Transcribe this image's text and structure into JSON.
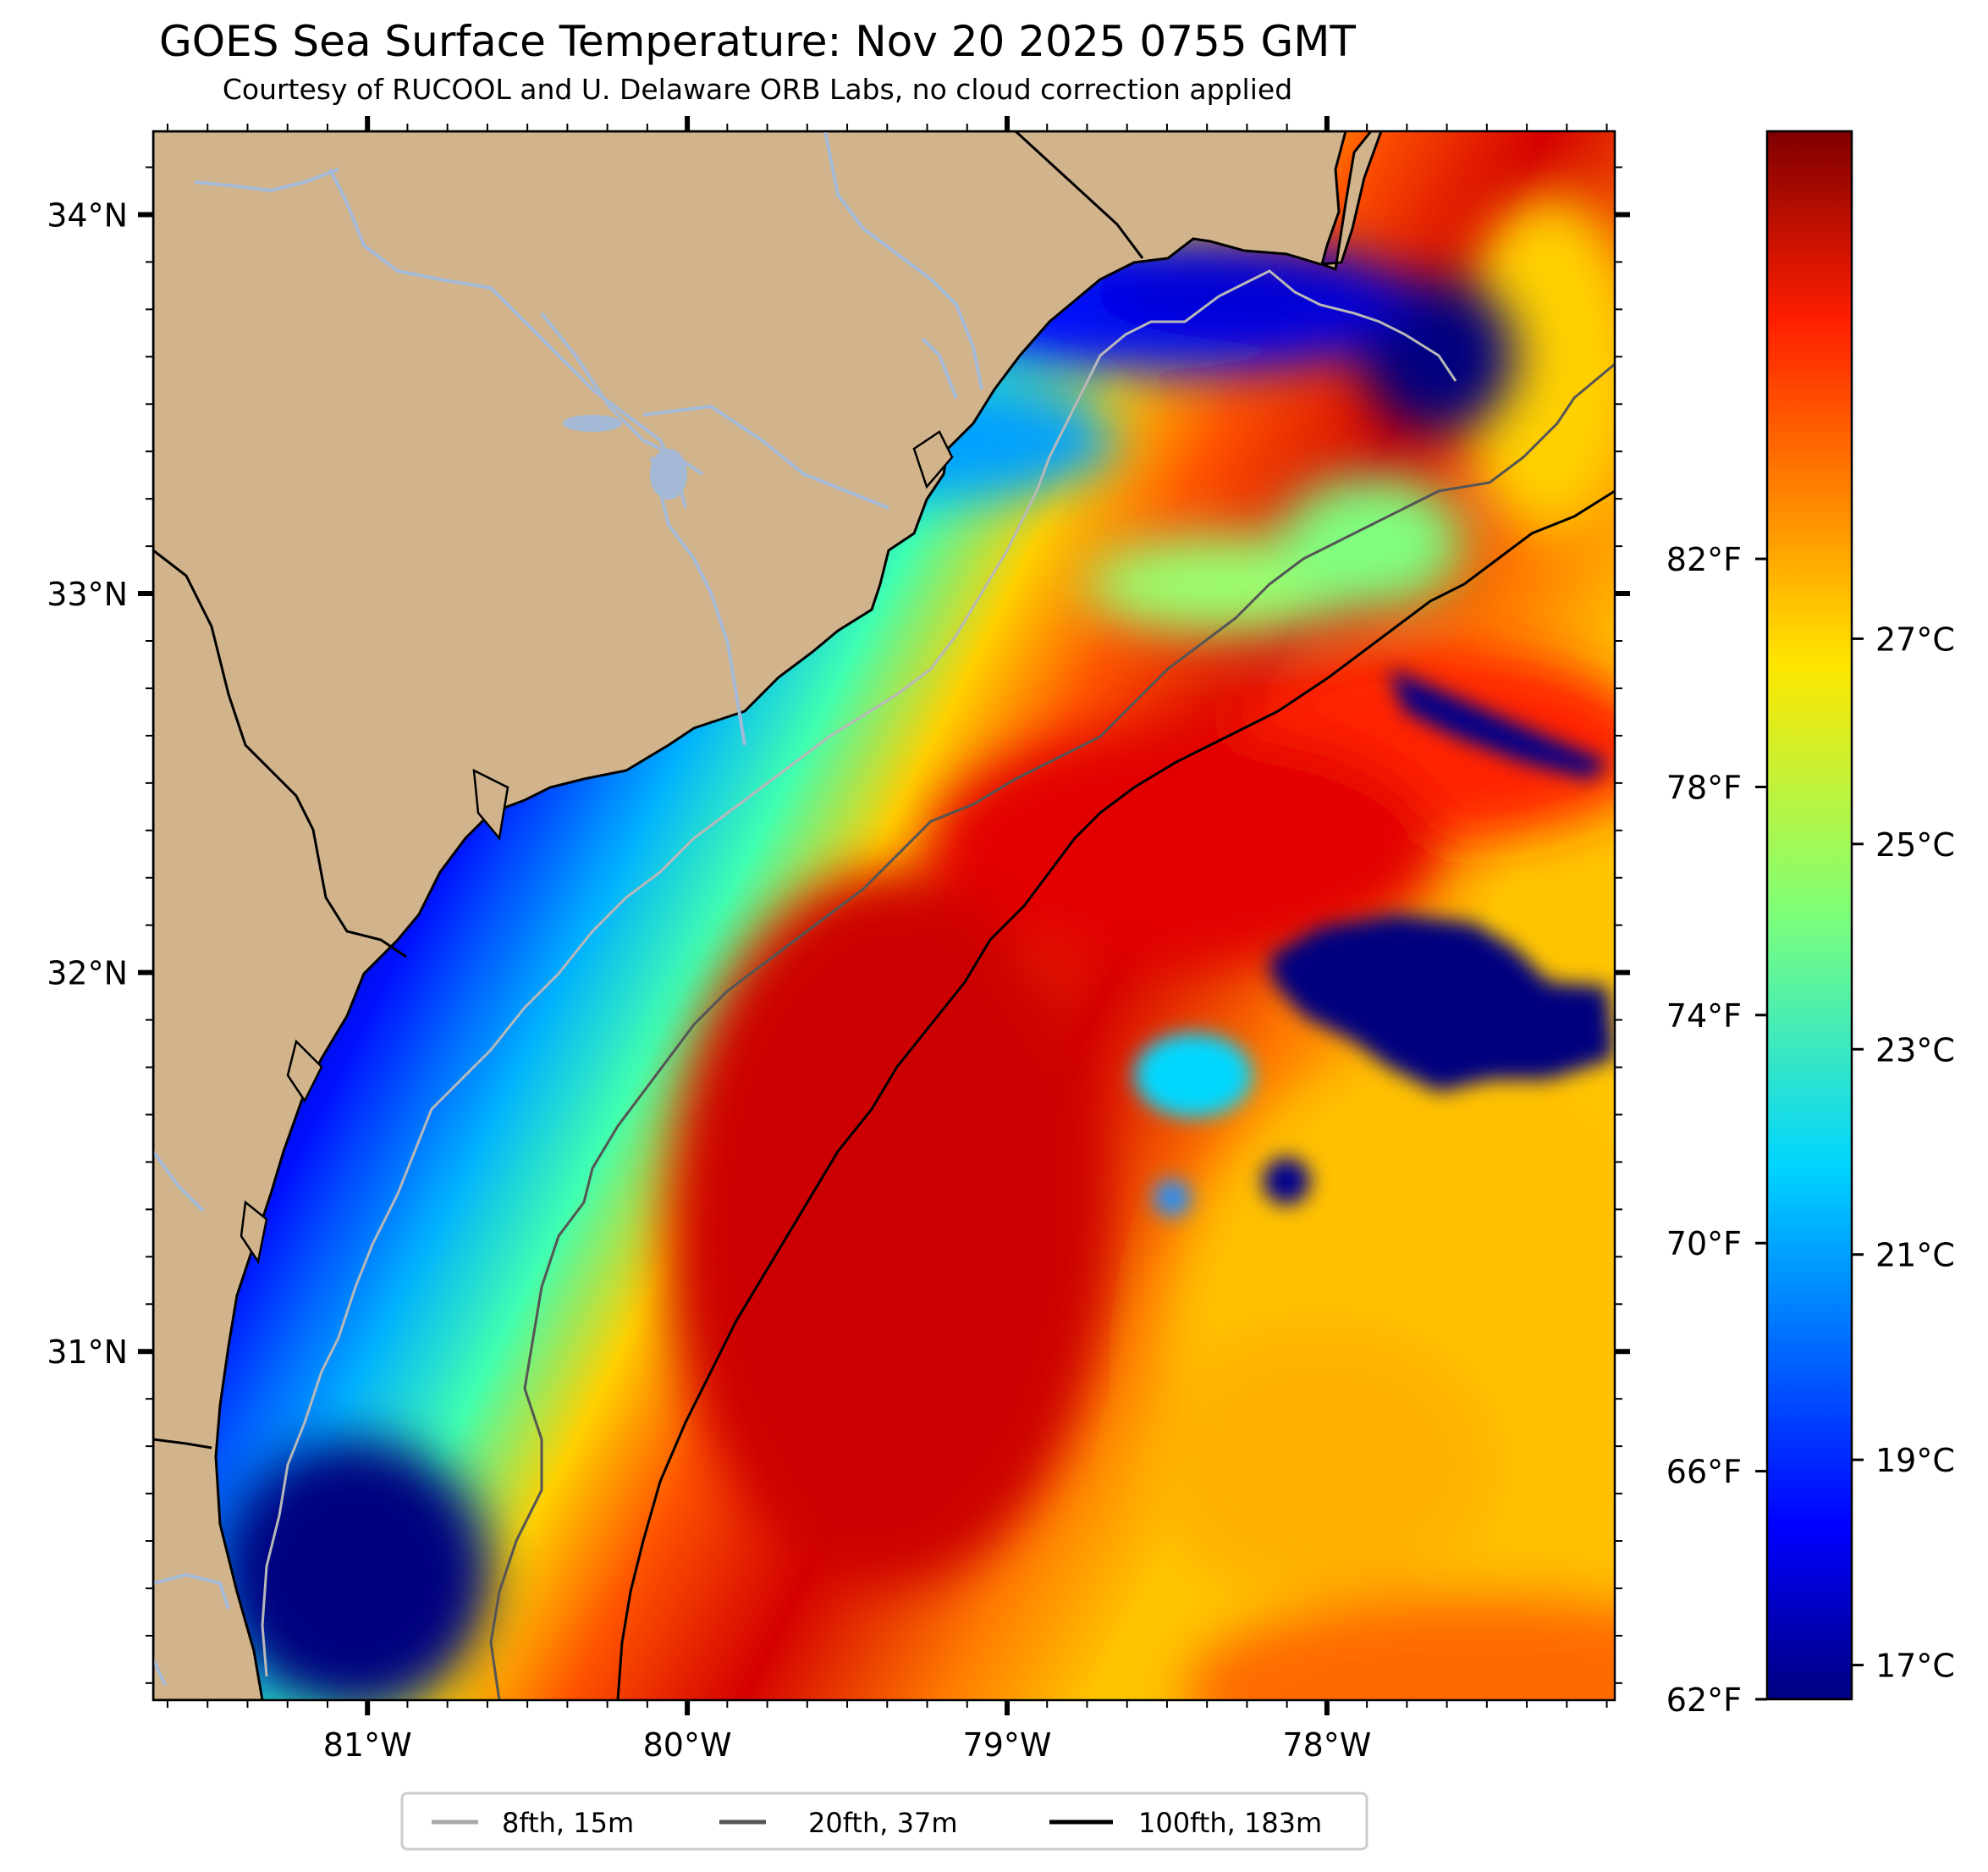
{
  "title": "GOES Sea Surface Temperature: Nov 20 2025 0755 GMT",
  "subtitle": "Courtesy of RUCOOL and U. Delaware ORB Labs, no cloud correction applied",
  "map": {
    "lon_range": [
      -81.67,
      -77.1
    ],
    "lat_range": [
      30.08,
      34.22
    ],
    "lon_ticks": [
      {
        "value": -81,
        "label": "81°W"
      },
      {
        "value": -80,
        "label": "80°W"
      },
      {
        "value": -79,
        "label": "79°W"
      },
      {
        "value": -78,
        "label": "78°W"
      }
    ],
    "lat_ticks": [
      {
        "value": 31,
        "label": "31°N"
      },
      {
        "value": 32,
        "label": "32°N"
      },
      {
        "value": 33,
        "label": "33°N"
      },
      {
        "value": 34,
        "label": "34°N"
      }
    ],
    "colors": {
      "land": "#d2b48c",
      "rivers": "#a3b9d6",
      "isobath_8fth": "#b0b0b0",
      "isobath_20fth": "#555555",
      "isobath_100fth": "#000000"
    }
  },
  "colorbar": {
    "colormap": "jet",
    "fahrenheit_ticks": [
      {
        "value": 62,
        "label": "62°F"
      },
      {
        "value": 66,
        "label": "66°F"
      },
      {
        "value": 70,
        "label": "70°F"
      },
      {
        "value": 74,
        "label": "74°F"
      },
      {
        "value": 78,
        "label": "78°F"
      },
      {
        "value": 82,
        "label": "82°F"
      }
    ],
    "celsius_ticks": [
      {
        "value": 17,
        "label": "17°C"
      },
      {
        "value": 19,
        "label": "19°C"
      },
      {
        "value": 21,
        "label": "21°C"
      },
      {
        "value": 23,
        "label": "23°C"
      },
      {
        "value": 25,
        "label": "25°C"
      },
      {
        "value": 27,
        "label": "27°C"
      }
    ]
  },
  "legend": [
    {
      "label": "8fth, 15m",
      "color": "#a8a8a8"
    },
    {
      "label": "20fth, 37m",
      "color": "#555555"
    },
    {
      "label": "100fth, 183m",
      "color": "#000000"
    }
  ]
}
